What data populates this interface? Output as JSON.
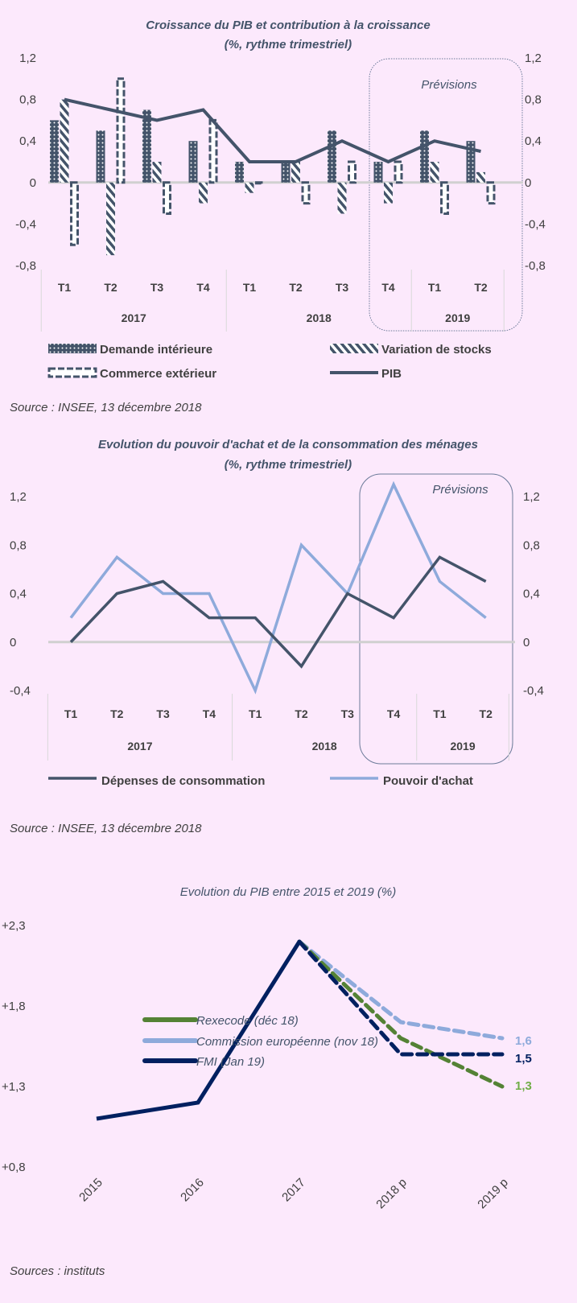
{
  "colors": {
    "background": "#fce9fc",
    "dark": "#44546a",
    "light_blue": "#8eaadb",
    "navy": "#002060",
    "green": "#548235",
    "green_label": "#70ad47"
  },
  "chart_data": [
    {
      "type": "bar",
      "title": "Croissance du PIB et contribution à la croissance",
      "subtitle": "(%, rythme trimestriel)",
      "categories": [
        "T1",
        "T2",
        "T3",
        "T4",
        "T1",
        "T2",
        "T3",
        "T4",
        "T1",
        "T2"
      ],
      "groups": [
        {
          "label": "2017",
          "span": 4
        },
        {
          "label": "2018",
          "span": 4
        },
        {
          "label": "2019",
          "span": 2
        }
      ],
      "yticks": [
        "1,2",
        "0,8",
        "0,4",
        "0",
        "-0,4",
        "-0,8"
      ],
      "ylim": [
        -0.8,
        1.2
      ],
      "annotation": "Prévisions",
      "series": [
        {
          "name": "Demande intérieure",
          "kind": "bar",
          "values": [
            0.6,
            0.5,
            0.7,
            0.4,
            0.2,
            0.2,
            0.5,
            0.2,
            0.5,
            0.4
          ]
        },
        {
          "name": "Variation de stocks",
          "kind": "bar",
          "values": [
            0.8,
            -0.7,
            0.2,
            -0.2,
            -0.1,
            0.2,
            -0.3,
            -0.2,
            0.2,
            0.1
          ]
        },
        {
          "name": "Commerce extérieur",
          "kind": "bar",
          "values": [
            -0.6,
            1.0,
            -0.3,
            0.6,
            0.0,
            -0.2,
            0.2,
            0.2,
            -0.3,
            -0.2
          ]
        },
        {
          "name": "PIB",
          "kind": "line",
          "values": [
            0.8,
            0.7,
            0.6,
            0.7,
            0.2,
            0.2,
            0.4,
            0.2,
            0.4,
            0.3
          ]
        }
      ],
      "legend_position": "bottom",
      "source": "Source : INSEE, 13 décembre 2018"
    },
    {
      "type": "line",
      "title": "Evolution du pouvoir d'achat et de la consommation des ménages",
      "subtitle": "(%, rythme trimestriel)",
      "categories": [
        "T1",
        "T2",
        "T3",
        "T4",
        "T1",
        "T2",
        "T3",
        "T4",
        "T1",
        "T2"
      ],
      "groups": [
        {
          "label": "2017",
          "span": 4
        },
        {
          "label": "2018",
          "span": 4
        },
        {
          "label": "2019",
          "span": 2
        }
      ],
      "yticks": [
        "1,2",
        "0,8",
        "0,4",
        "0",
        "-0,4"
      ],
      "ylim": [
        -0.4,
        1.2
      ],
      "annotation": "Prévisions",
      "series": [
        {
          "name": "Dépenses de consommation",
          "values": [
            0,
            0.4,
            0.5,
            0.2,
            0.2,
            -0.2,
            0.4,
            0.2,
            0.7,
            0.5
          ]
        },
        {
          "name": "Pouvoir d'achat",
          "values": [
            0.2,
            0.7,
            0.4,
            0.4,
            -0.4,
            0.8,
            0.4,
            1.3,
            0.5,
            0.2
          ]
        }
      ],
      "legend_position": "bottom",
      "source": "Source : INSEE, 13 décembre 2018"
    },
    {
      "type": "line",
      "title": "Evolution du PIB entre 2015 et 2019 (%)",
      "categories": [
        "2015",
        "2016",
        "2017",
        "2018 p",
        "2019 p"
      ],
      "yticks": [
        "+2,3",
        "+1,8",
        "+1,3",
        "+0,8"
      ],
      "ylim": [
        0.8,
        2.3
      ],
      "series": [
        {
          "name": "Rexecode (déc 18)",
          "values": [
            null,
            null,
            2.2,
            1.6,
            1.3
          ],
          "end_label": "1,3"
        },
        {
          "name": "Commission européenne  (nov 18)",
          "values": [
            null,
            null,
            2.2,
            1.7,
            1.6
          ],
          "end_label": "1,6"
        },
        {
          "name": "FMI (Jan 19)",
          "values": [
            1.1,
            1.2,
            2.2,
            1.5,
            1.5
          ],
          "end_label": "1,5"
        }
      ],
      "legend_position": "bottom-center",
      "source": "Sources : instituts"
    }
  ]
}
